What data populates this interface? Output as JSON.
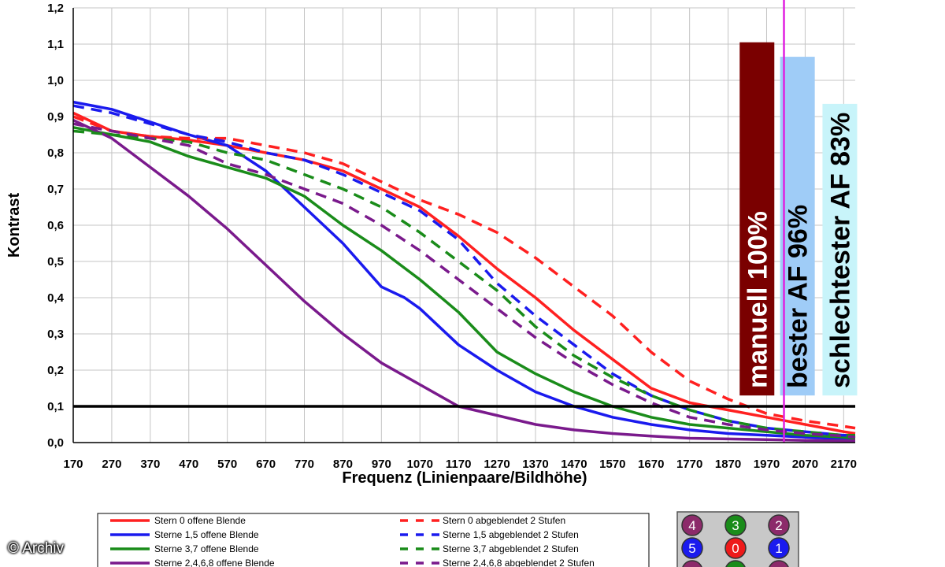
{
  "chart_data": {
    "type": "line",
    "title": "",
    "xlabel": "Frequenz (Linienpaare/Bildhöhe)",
    "ylabel": "Kontrast",
    "xlim": [
      170,
      2200
    ],
    "ylim": [
      0,
      1.2
    ],
    "x_ticks": [
      "170",
      "270",
      "370",
      "470",
      "570",
      "670",
      "770",
      "870",
      "970",
      "1070",
      "1170",
      "1270",
      "1370",
      "1470",
      "1570",
      "1670",
      "1770",
      "1870",
      "1970",
      "2070",
      "2170"
    ],
    "y_ticks": [
      "0,0",
      "0,1",
      "0,2",
      "0,3",
      "0,4",
      "0,5",
      "0,6",
      "0,7",
      "0,8",
      "0,9",
      "1,0",
      "1,1",
      "1,2"
    ],
    "grid": true,
    "reference_line": 0.1,
    "marker_x": 2015,
    "series": [
      {
        "name": "Stern 0 offene Blende",
        "color": "#ff2020",
        "dash": false,
        "x": [
          170,
          270,
          370,
          470,
          570,
          670,
          770,
          870,
          970,
          1070,
          1170,
          1270,
          1370,
          1470,
          1570,
          1670,
          1770,
          1870,
          1970,
          2070,
          2170,
          2200
        ],
        "y": [
          0.91,
          0.86,
          0.845,
          0.835,
          0.82,
          0.8,
          0.78,
          0.75,
          0.7,
          0.65,
          0.57,
          0.48,
          0.4,
          0.31,
          0.23,
          0.15,
          0.11,
          0.09,
          0.07,
          0.05,
          0.03,
          0.025
        ]
      },
      {
        "name": "Sterne 1,5 offene Blende",
        "color": "#1a1aee",
        "dash": false,
        "x": [
          170,
          270,
          370,
          470,
          570,
          670,
          770,
          870,
          970,
          1030,
          1070,
          1170,
          1270,
          1370,
          1470,
          1570,
          1670,
          1770,
          1870,
          1970,
          2070,
          2170,
          2200
        ],
        "y": [
          0.94,
          0.92,
          0.885,
          0.85,
          0.82,
          0.75,
          0.65,
          0.55,
          0.43,
          0.4,
          0.37,
          0.27,
          0.2,
          0.14,
          0.1,
          0.07,
          0.05,
          0.035,
          0.025,
          0.02,
          0.015,
          0.01,
          0.01
        ]
      },
      {
        "name": "Sterne 3,7 offene Blende",
        "color": "#1a8c1a",
        "dash": false,
        "x": [
          170,
          270,
          370,
          470,
          570,
          670,
          770,
          870,
          970,
          1070,
          1170,
          1270,
          1370,
          1470,
          1570,
          1670,
          1770,
          1870,
          1970,
          2070,
          2170,
          2200
        ],
        "y": [
          0.87,
          0.85,
          0.83,
          0.79,
          0.76,
          0.73,
          0.68,
          0.6,
          0.53,
          0.45,
          0.36,
          0.25,
          0.19,
          0.14,
          0.1,
          0.07,
          0.05,
          0.04,
          0.03,
          0.02,
          0.015,
          0.012
        ]
      },
      {
        "name": "Sterne 2,4,6,8 offene Blende",
        "color": "#7a1a8c",
        "dash": false,
        "x": [
          170,
          270,
          370,
          470,
          570,
          670,
          770,
          870,
          970,
          1070,
          1170,
          1270,
          1370,
          1470,
          1570,
          1670,
          1770,
          1870,
          1970,
          2070,
          2170,
          2200
        ],
        "y": [
          0.89,
          0.84,
          0.76,
          0.68,
          0.59,
          0.49,
          0.39,
          0.3,
          0.22,
          0.16,
          0.1,
          0.075,
          0.05,
          0.035,
          0.025,
          0.018,
          0.012,
          0.01,
          0.008,
          0.006,
          0.005,
          0.005
        ]
      },
      {
        "name": "Stern 0 abgeblendet 2 Stufen",
        "color": "#ff2020",
        "dash": true,
        "x": [
          170,
          270,
          370,
          470,
          570,
          670,
          770,
          870,
          970,
          1070,
          1170,
          1270,
          1370,
          1470,
          1570,
          1670,
          1770,
          1870,
          1970,
          2070,
          2170,
          2200
        ],
        "y": [
          0.9,
          0.86,
          0.845,
          0.84,
          0.84,
          0.82,
          0.8,
          0.77,
          0.72,
          0.67,
          0.63,
          0.58,
          0.51,
          0.43,
          0.35,
          0.25,
          0.17,
          0.12,
          0.08,
          0.06,
          0.045,
          0.04
        ]
      },
      {
        "name": "Sterne 1,5 abgeblendet 2 Stufen",
        "color": "#1a1aee",
        "dash": true,
        "x": [
          170,
          270,
          370,
          470,
          570,
          670,
          770,
          870,
          970,
          1070,
          1170,
          1270,
          1370,
          1470,
          1570,
          1670,
          1770,
          1870,
          1970,
          2070,
          2170,
          2200
        ],
        "y": [
          0.93,
          0.91,
          0.88,
          0.85,
          0.83,
          0.8,
          0.78,
          0.74,
          0.69,
          0.64,
          0.56,
          0.44,
          0.35,
          0.27,
          0.19,
          0.13,
          0.09,
          0.06,
          0.04,
          0.03,
          0.02,
          0.02
        ]
      },
      {
        "name": "Sterne 3,7 abgeblendet 2 Stufen",
        "color": "#1a8c1a",
        "dash": true,
        "x": [
          170,
          270,
          370,
          470,
          570,
          670,
          770,
          870,
          970,
          1070,
          1170,
          1270,
          1370,
          1470,
          1570,
          1670,
          1770,
          1870,
          1970,
          2070,
          2170,
          2200
        ],
        "y": [
          0.86,
          0.85,
          0.84,
          0.83,
          0.8,
          0.78,
          0.74,
          0.7,
          0.65,
          0.58,
          0.5,
          0.42,
          0.32,
          0.24,
          0.18,
          0.13,
          0.09,
          0.06,
          0.04,
          0.03,
          0.02,
          0.02
        ]
      },
      {
        "name": "Sterne 2,4,6,8 abgeblendet 2 Stufen",
        "color": "#7a1a8c",
        "dash": true,
        "x": [
          170,
          270,
          370,
          470,
          570,
          670,
          770,
          870,
          970,
          1070,
          1170,
          1270,
          1370,
          1470,
          1570,
          1670,
          1770,
          1870,
          1970,
          2070,
          2170,
          2200
        ],
        "y": [
          0.88,
          0.86,
          0.84,
          0.82,
          0.77,
          0.74,
          0.7,
          0.66,
          0.6,
          0.53,
          0.45,
          0.37,
          0.29,
          0.22,
          0.16,
          0.11,
          0.07,
          0.05,
          0.035,
          0.025,
          0.018,
          0.015
        ]
      }
    ],
    "bars": [
      {
        "label": "manuell 100%",
        "value": 1.105,
        "x_from": 1900,
        "x_to": 1990,
        "color": "#7a0000",
        "text_color": "#ffffff",
        "text_bottom": 0.15
      },
      {
        "label": "bester AF 96%",
        "value": 1.065,
        "x_from": 2005,
        "x_to": 2095,
        "color": "#9fccf7",
        "text_color": "#000000",
        "text_bottom": 0.15
      },
      {
        "label": "schlechtester AF 83%",
        "value": 0.935,
        "x_from": 2115,
        "x_to": 2205,
        "color": "#c8f4fa",
        "text_color": "#000000",
        "text_bottom": 0.15
      }
    ],
    "legend": [
      {
        "label": "Stern 0 offene Blende",
        "color": "#ff2020",
        "dash": false
      },
      {
        "label": "Sterne 1,5 offene Blende",
        "color": "#1a1aee",
        "dash": false
      },
      {
        "label": "Sterne 3,7 offene Blende",
        "color": "#1a8c1a",
        "dash": false
      },
      {
        "label": "Sterne 2,4,6,8 offene Blende",
        "color": "#7a1a8c",
        "dash": false
      },
      {
        "label": "Stern 0 abgeblendet 2 Stufen",
        "color": "#ff2020",
        "dash": true
      },
      {
        "label": "Sterne 1,5 abgeblendet 2 Stufen",
        "color": "#1a1aee",
        "dash": true
      },
      {
        "label": "Sterne 3,7 abgeblendet 2 Stufen",
        "color": "#1a8c1a",
        "dash": true
      },
      {
        "label": "Sterne 2,4,6,8 abgeblendet 2 Stufen",
        "color": "#7a1a8c",
        "dash": true
      }
    ],
    "star_badges": [
      {
        "label": "4",
        "color": "#8c2a6a"
      },
      {
        "label": "3",
        "color": "#1a8c1a"
      },
      {
        "label": "2",
        "color": "#8c2a6a"
      },
      {
        "label": "5",
        "color": "#1a1aee"
      },
      {
        "label": "0",
        "color": "#ee1a1a"
      },
      {
        "label": "1",
        "color": "#1a1aee"
      },
      {
        "label": "",
        "color": "#8c2a6a"
      },
      {
        "label": "",
        "color": "#1a8c1a"
      },
      {
        "label": "",
        "color": "#8c2a6a"
      }
    ]
  },
  "credit": "© Archiv"
}
